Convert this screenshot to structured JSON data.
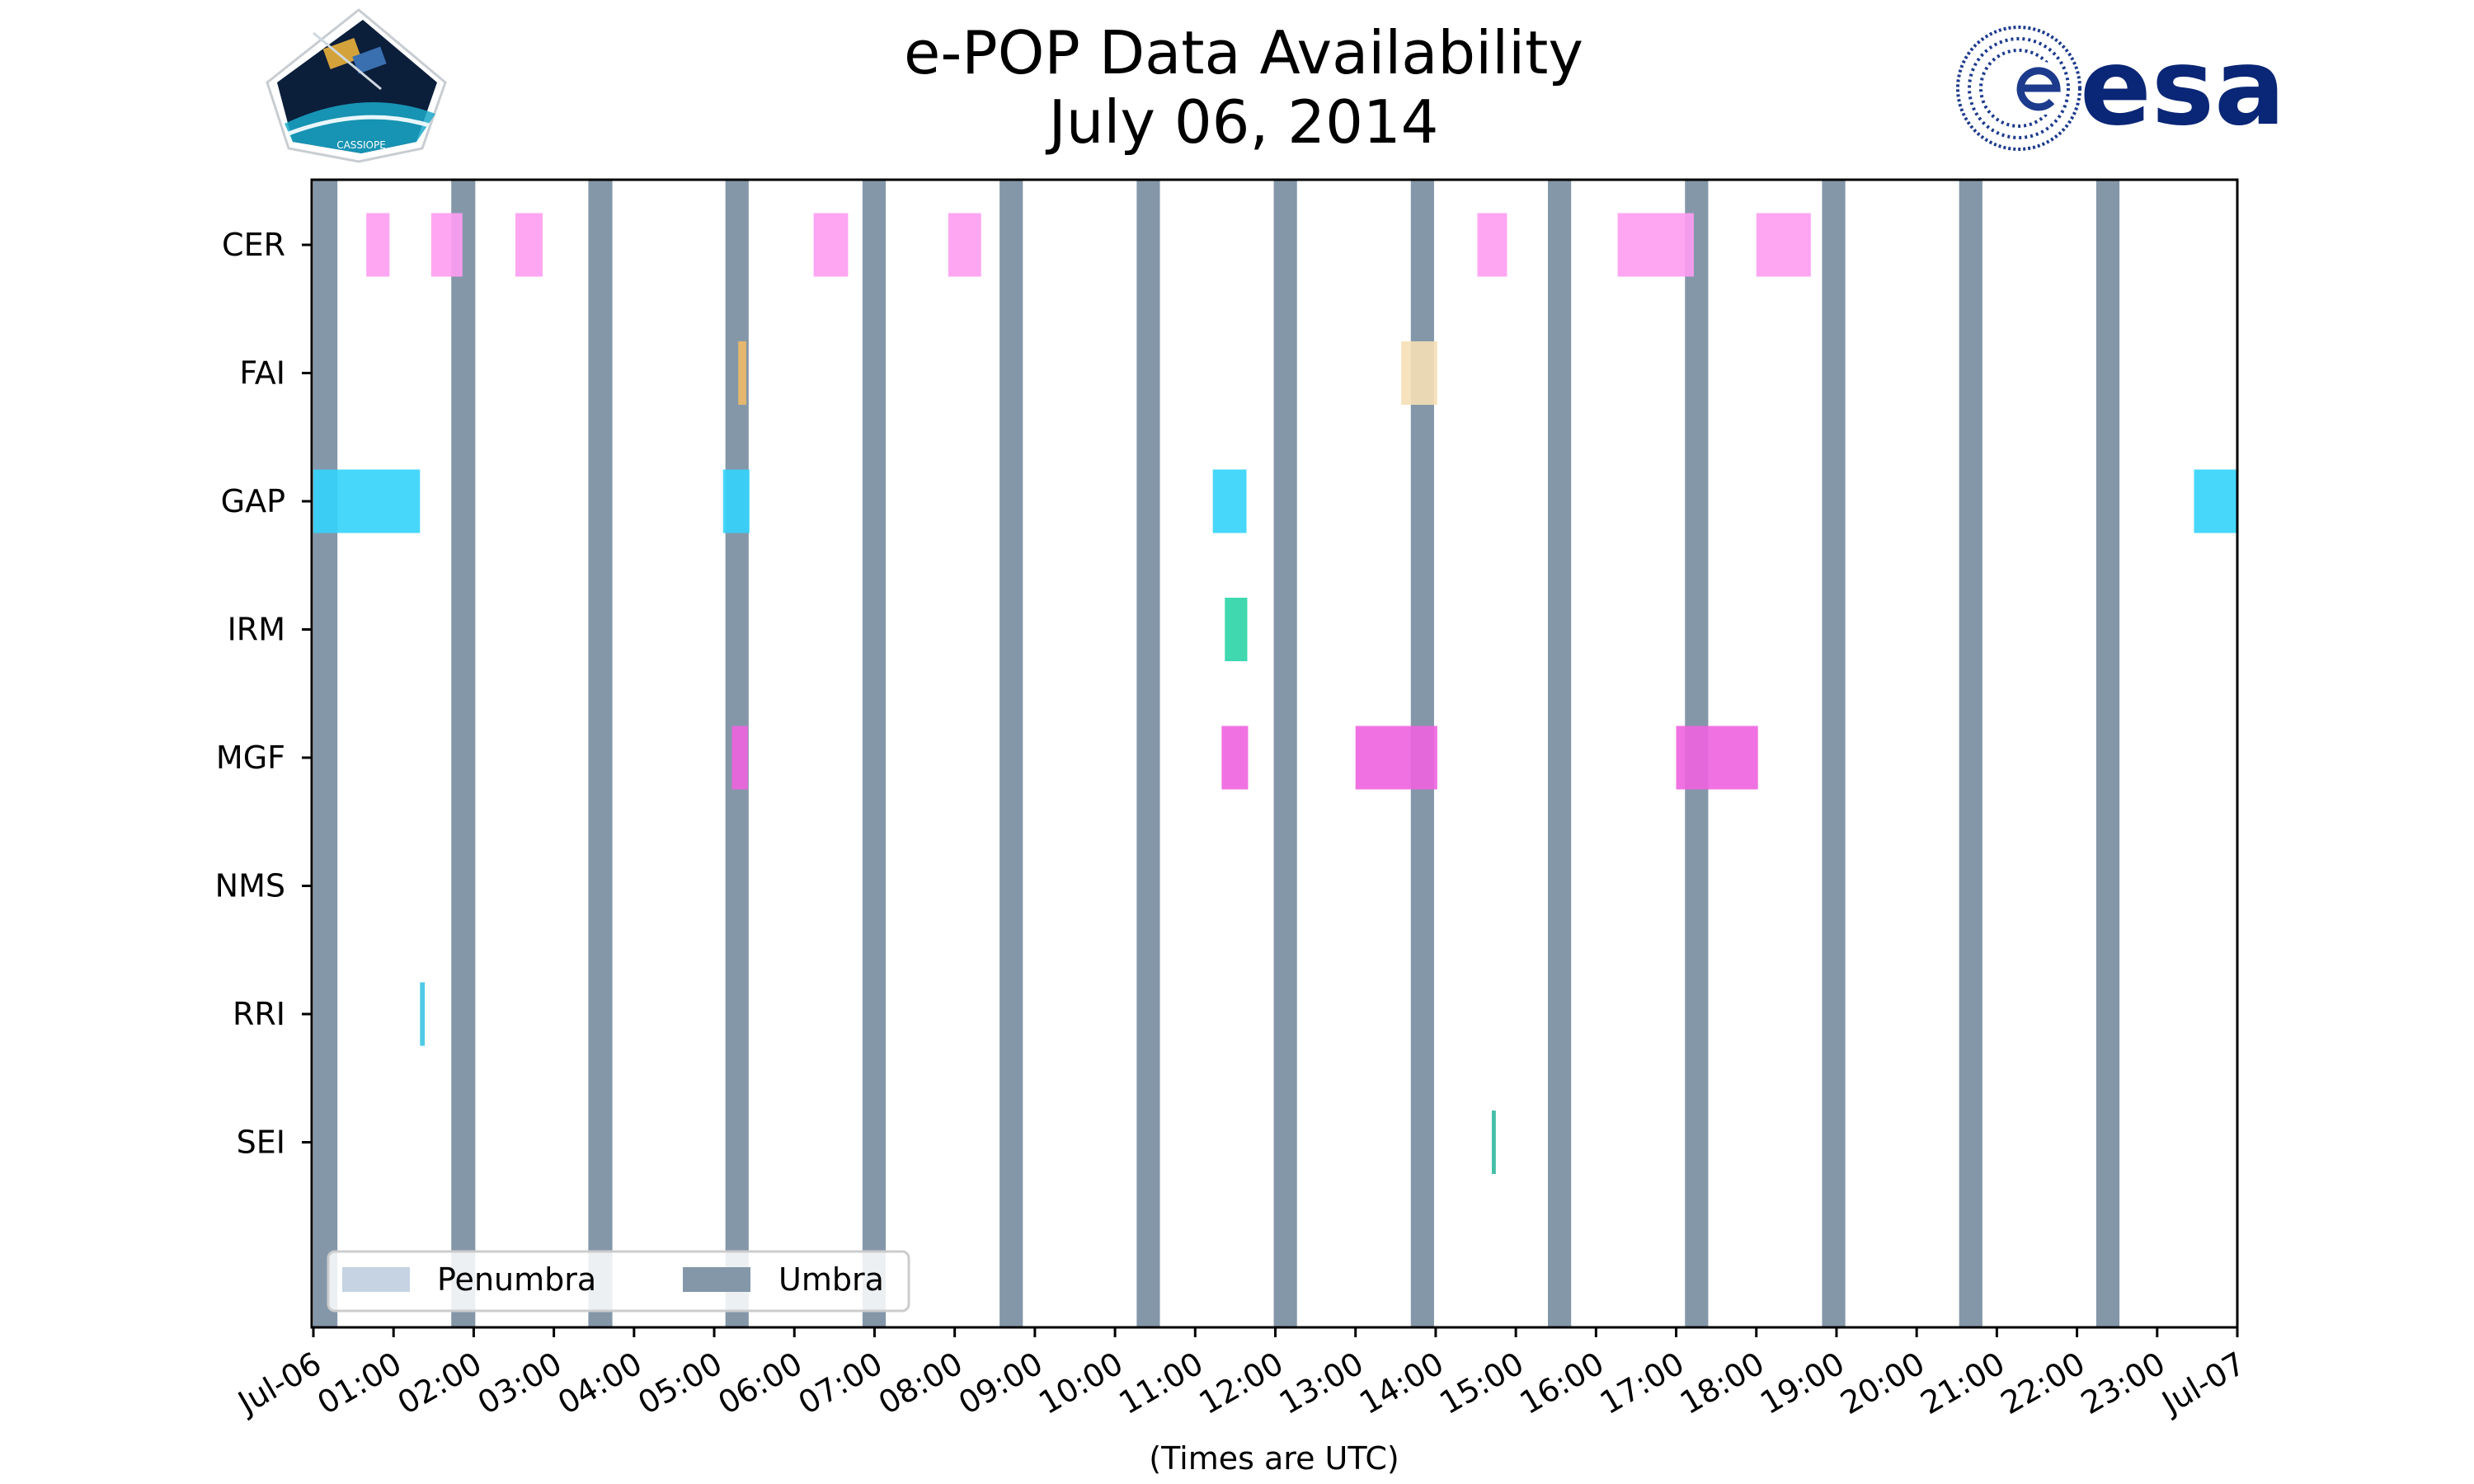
{
  "header": {
    "title_line1": "e-POP Data Availability",
    "title_line2": "July 06, 2014",
    "left_logo": {
      "icon": "cassiope-mission-patch",
      "text": "CASSIOPE"
    },
    "right_logo": {
      "icon": "esa-logo",
      "text": "esa",
      "color": "#0a2676"
    }
  },
  "chart_data": {
    "type": "timeline",
    "xlabel": "(Times are UTC)",
    "xlim": [
      0,
      24
    ],
    "x_units": "hours UTC on 2014-07-06",
    "x_ticks": [
      {
        "t": 0,
        "label": "Jul-06"
      },
      {
        "t": 1,
        "label": "01:00"
      },
      {
        "t": 2,
        "label": "02:00"
      },
      {
        "t": 3,
        "label": "03:00"
      },
      {
        "t": 4,
        "label": "04:00"
      },
      {
        "t": 5,
        "label": "05:00"
      },
      {
        "t": 6,
        "label": "06:00"
      },
      {
        "t": 7,
        "label": "07:00"
      },
      {
        "t": 8,
        "label": "08:00"
      },
      {
        "t": 9,
        "label": "09:00"
      },
      {
        "t": 10,
        "label": "10:00"
      },
      {
        "t": 11,
        "label": "11:00"
      },
      {
        "t": 12,
        "label": "12:00"
      },
      {
        "t": 13,
        "label": "13:00"
      },
      {
        "t": 14,
        "label": "14:00"
      },
      {
        "t": 15,
        "label": "15:00"
      },
      {
        "t": 16,
        "label": "16:00"
      },
      {
        "t": 17,
        "label": "17:00"
      },
      {
        "t": 18,
        "label": "18:00"
      },
      {
        "t": 19,
        "label": "19:00"
      },
      {
        "t": 20,
        "label": "20:00"
      },
      {
        "t": 21,
        "label": "21:00"
      },
      {
        "t": 22,
        "label": "22:00"
      },
      {
        "t": 23,
        "label": "23:00"
      },
      {
        "t": 24,
        "label": "Jul-07"
      }
    ],
    "instruments": [
      "CER",
      "FAI",
      "GAP",
      "IRM",
      "MGF",
      "NMS",
      "RRI",
      "SEI"
    ],
    "umbra": {
      "name": "Umbra",
      "color": "#8497a9",
      "intervals": [
        [
          0.0,
          0.3
        ],
        [
          1.72,
          2.02
        ],
        [
          3.43,
          3.73
        ],
        [
          5.14,
          5.43
        ],
        [
          6.85,
          7.14
        ],
        [
          8.56,
          8.85
        ],
        [
          10.27,
          10.56
        ],
        [
          11.98,
          12.27
        ],
        [
          13.69,
          13.98
        ],
        [
          15.4,
          15.69
        ],
        [
          17.11,
          17.4
        ],
        [
          18.82,
          19.11
        ],
        [
          20.53,
          20.82
        ],
        [
          22.24,
          22.53
        ]
      ]
    },
    "penumbra": {
      "name": "Penumbra",
      "color": "#c5d3e3",
      "intervals": []
    },
    "legend": {
      "position": "lower-left",
      "entries": [
        "Penumbra",
        "Umbra"
      ]
    },
    "series": [
      {
        "name": "CER",
        "color": "#ff9cf2",
        "intervals": [
          [
            0.66,
            0.95
          ],
          [
            1.47,
            1.86
          ],
          [
            2.52,
            2.86
          ],
          [
            6.24,
            6.67
          ],
          [
            7.92,
            8.33
          ],
          [
            14.52,
            14.89
          ],
          [
            16.27,
            17.22
          ],
          [
            18.0,
            18.68
          ]
        ]
      },
      {
        "name": "FAI",
        "color": "#f0b966",
        "intervals": [
          [
            5.3,
            5.4
          ]
        ]
      },
      {
        "name": "FAI",
        "color": "#f5dfb5",
        "intervals": [
          [
            13.57,
            14.02
          ]
        ]
      },
      {
        "name": "GAP",
        "color": "#33d3fb",
        "intervals": [
          [
            0.0,
            1.33
          ],
          [
            5.11,
            5.44
          ],
          [
            11.22,
            11.64
          ],
          [
            23.46,
            24.0
          ]
        ]
      },
      {
        "name": "IRM",
        "color": "#2ad4a6",
        "intervals": [
          [
            11.37,
            11.65
          ]
        ]
      },
      {
        "name": "MGF",
        "color": "#ee63df",
        "intervals": [
          [
            5.22,
            5.42
          ],
          [
            11.33,
            11.66
          ],
          [
            13.0,
            14.02
          ],
          [
            17.0,
            18.02
          ]
        ]
      },
      {
        "name": "NMS",
        "color": "#cccccc",
        "intervals": []
      },
      {
        "name": "RRI",
        "color": "#3ec4e6",
        "intervals": [
          [
            1.33,
            1.39
          ]
        ]
      },
      {
        "name": "SEI",
        "color": "#31b89b",
        "intervals": [
          [
            14.7,
            14.75
          ]
        ]
      }
    ]
  }
}
